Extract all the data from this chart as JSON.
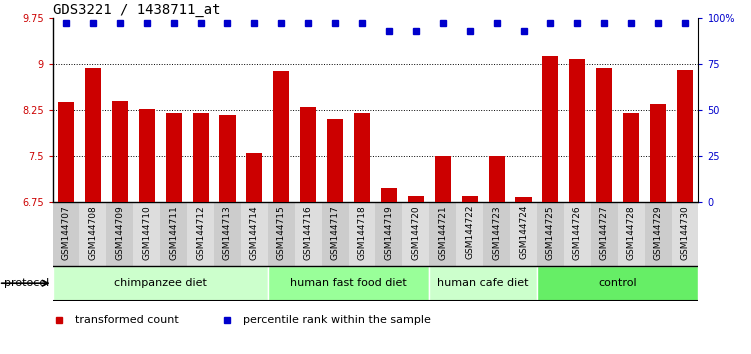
{
  "title": "GDS3221 / 1438711_at",
  "samples": [
    "GSM144707",
    "GSM144708",
    "GSM144709",
    "GSM144710",
    "GSM144711",
    "GSM144712",
    "GSM144713",
    "GSM144714",
    "GSM144715",
    "GSM144716",
    "GSM144717",
    "GSM144718",
    "GSM144719",
    "GSM144720",
    "GSM144721",
    "GSM144722",
    "GSM144723",
    "GSM144724",
    "GSM144725",
    "GSM144726",
    "GSM144727",
    "GSM144728",
    "GSM144729",
    "GSM144730"
  ],
  "bar_values": [
    8.38,
    8.93,
    8.4,
    8.27,
    8.2,
    8.2,
    8.17,
    7.54,
    8.88,
    8.3,
    8.1,
    8.2,
    6.98,
    6.85,
    7.5,
    6.85,
    7.5,
    6.82,
    9.13,
    9.08,
    8.93,
    8.2,
    8.35,
    8.9
  ],
  "percentile_values": [
    97,
    97,
    97,
    97,
    97,
    97,
    97,
    97,
    97,
    97,
    97,
    97,
    93,
    93,
    97,
    93,
    97,
    93,
    97,
    97,
    97,
    97,
    97,
    97
  ],
  "groups": [
    {
      "label": "chimpanzee diet",
      "start": 0,
      "end": 8,
      "color": "#ccffcc"
    },
    {
      "label": "human fast food diet",
      "start": 8,
      "end": 14,
      "color": "#99ff99"
    },
    {
      "label": "human cafe diet",
      "start": 14,
      "end": 18,
      "color": "#ccffcc"
    },
    {
      "label": "control",
      "start": 18,
      "end": 24,
      "color": "#66ee66"
    }
  ],
  "bar_color": "#cc0000",
  "percentile_color": "#0000cc",
  "ylim_left": [
    6.75,
    9.75
  ],
  "ylim_right": [
    0,
    100
  ],
  "yticks_left": [
    6.75,
    7.5,
    8.25,
    9.0,
    9.75
  ],
  "yticks_right": [
    0,
    25,
    50,
    75,
    100
  ],
  "ytick_labels_left": [
    "6.75",
    "7.5",
    "8.25",
    "9",
    "9.75"
  ],
  "ytick_labels_right": [
    "0",
    "25",
    "50",
    "75",
    "100%"
  ],
  "grid_values": [
    7.5,
    8.25,
    9.0
  ],
  "protocol_label": "protocol",
  "legend_items": [
    {
      "label": "transformed count",
      "color": "#cc0000",
      "marker": "s"
    },
    {
      "label": "percentile rank within the sample",
      "color": "#0000cc",
      "marker": "s"
    }
  ],
  "title_fontsize": 10,
  "tick_fontsize": 7,
  "bar_width": 0.6
}
